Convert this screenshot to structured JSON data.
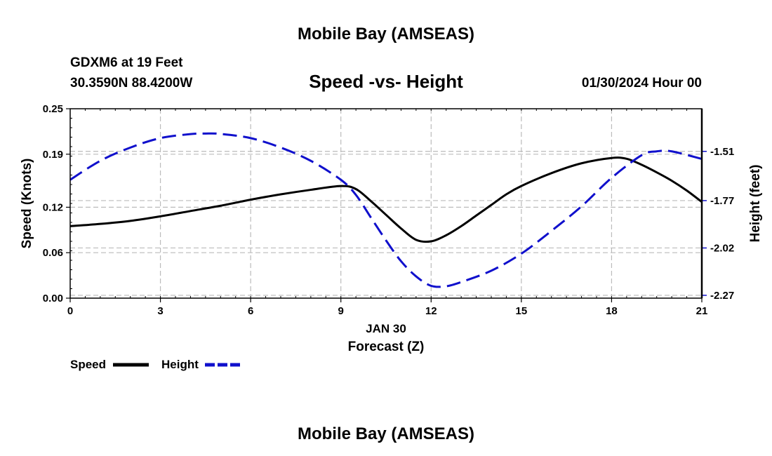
{
  "page": {
    "title_top": "Mobile Bay (AMSEAS)",
    "title_bottom": "Mobile Bay (AMSEAS)",
    "station_line": "GDXM6 at 19 Feet",
    "coords_line": "30.3590N  88.4200W",
    "date_line": "01/30/2024 Hour 00"
  },
  "colors": {
    "speed": "#000000",
    "height": "#1010cc",
    "grid": "#bbbbbb"
  },
  "chart_data": {
    "type": "line",
    "title": "Speed -vs- Height",
    "xlabel": "Forecast (Z)",
    "date_label": "JAN 30",
    "ylabel": "Speed (Knots)",
    "y2label": "Height (feet)",
    "xlim": [
      0,
      21
    ],
    "ylim": [
      0,
      0.25
    ],
    "y2lim": [
      -2.285,
      -1.285
    ],
    "xticks": [
      0,
      3,
      6,
      9,
      12,
      15,
      18,
      21
    ],
    "xtick_labels": [
      "0",
      "3",
      "6",
      "9",
      "12",
      "15",
      "18",
      "21"
    ],
    "yticks": [
      0.0,
      0.06,
      0.12,
      0.19,
      0.25
    ],
    "ytick_labels": [
      "0.00",
      "0.06",
      "0.12",
      "0.19",
      "0.25"
    ],
    "y2ticks": [
      -1.51,
      -1.77,
      -2.02,
      -2.27
    ],
    "y2tick_labels": [
      "-1.51",
      "-1.77",
      "-2.02",
      "-2.27"
    ],
    "legend": [
      "Speed",
      "Height"
    ],
    "series": [
      {
        "name": "Speed",
        "axis": "left",
        "style": "solid",
        "x": [
          0,
          1,
          2,
          3,
          4,
          5,
          6,
          7,
          8,
          9,
          9.5,
          10,
          10.5,
          11,
          11.5,
          12,
          12.5,
          13,
          13.5,
          14,
          14.5,
          15,
          16,
          17,
          18,
          18.5,
          19,
          19.5,
          20,
          20.5,
          21
        ],
        "values": [
          0.095,
          0.098,
          0.102,
          0.108,
          0.115,
          0.122,
          0.13,
          0.137,
          0.143,
          0.148,
          0.144,
          0.128,
          0.11,
          0.092,
          0.077,
          0.075,
          0.083,
          0.095,
          0.109,
          0.123,
          0.137,
          0.148,
          0.165,
          0.178,
          0.185,
          0.184,
          0.176,
          0.166,
          0.155,
          0.142,
          0.127
        ]
      },
      {
        "name": "Height",
        "axis": "right",
        "style": "dashed",
        "x": [
          0,
          1,
          2,
          3,
          4,
          4.5,
          5,
          6,
          7,
          8,
          9,
          9.5,
          10,
          10.5,
          11,
          11.5,
          12,
          12.5,
          13,
          14,
          15,
          16,
          17,
          18,
          19,
          19.5,
          20,
          21
        ],
        "values": [
          -1.66,
          -1.56,
          -1.49,
          -1.44,
          -1.419,
          -1.416,
          -1.418,
          -1.44,
          -1.49,
          -1.56,
          -1.66,
          -1.74,
          -1.86,
          -1.98,
          -2.09,
          -2.17,
          -2.22,
          -2.222,
          -2.2,
          -2.14,
          -2.05,
          -1.93,
          -1.8,
          -1.65,
          -1.53,
          -1.51,
          -1.51,
          -1.55
        ]
      }
    ]
  }
}
